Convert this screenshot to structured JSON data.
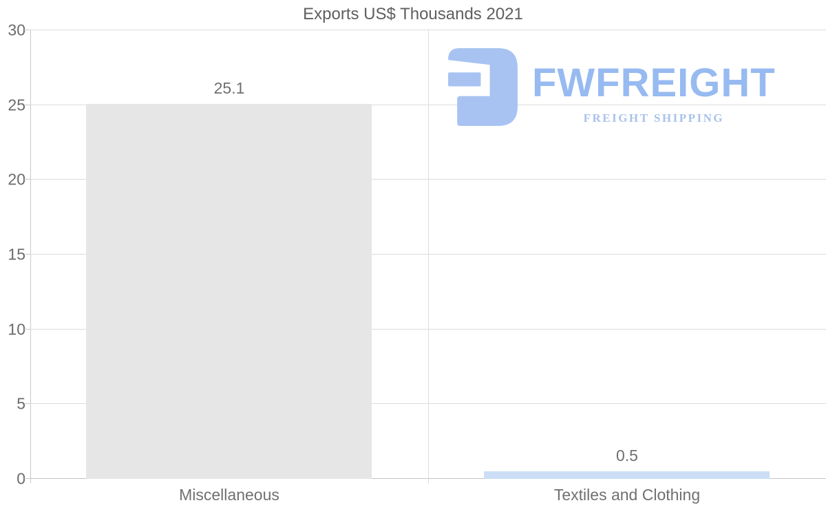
{
  "title": "Exports US$ Thousands 2021",
  "watermark": {
    "brand": "FWFREIGHT",
    "tagline": "FREIGHT SHIPPING",
    "icon": "fwfreight-logo-icon",
    "icon_color": "#a8c3f2",
    "brand_color": "#97baf1",
    "tagline_color": "#a9c2ec"
  },
  "colors": {
    "background": "#ffffff",
    "gridline": "#dcdcdc",
    "axis_line": "#c9c9c9",
    "zero_line": "#c4c4c4",
    "title_text": "#5f5f5f",
    "label_text": "#6f6f6f"
  },
  "chart_data": {
    "type": "bar",
    "title": "Exports US$ Thousands 2021",
    "categories": [
      "Miscellaneous",
      "Textiles and Clothing"
    ],
    "values": [
      25.1,
      0.5
    ],
    "value_labels": [
      "25.1",
      "0.5"
    ],
    "bar_colors": [
      "#e6e6e6",
      "#cbdef6"
    ],
    "xlabel": "",
    "ylabel": "",
    "ylim": [
      0,
      30
    ],
    "yticks": [
      0,
      5,
      10,
      15,
      20,
      25,
      30
    ],
    "grid": true,
    "legend": false,
    "legend_position": "none"
  }
}
